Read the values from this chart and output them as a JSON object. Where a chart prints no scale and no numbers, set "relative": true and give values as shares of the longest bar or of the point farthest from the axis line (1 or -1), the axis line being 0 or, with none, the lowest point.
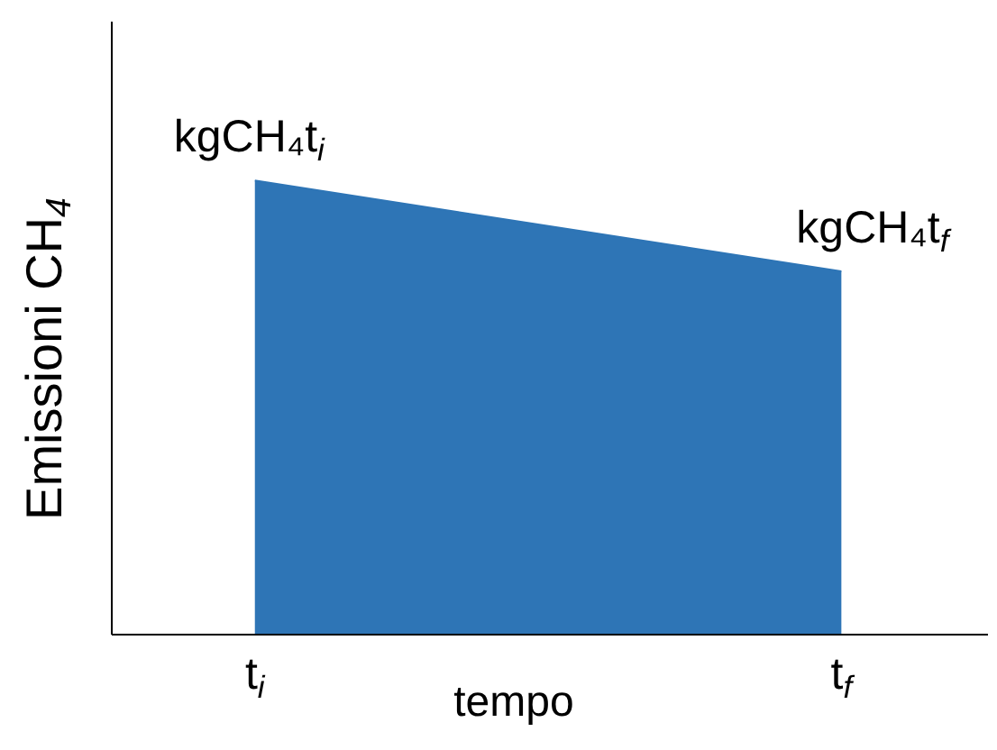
{
  "chart_data": {
    "type": "area",
    "relative": true,
    "xlabel": "tempo",
    "ylabel": "Emissioni CH$_{4}$",
    "categories": [
      "t$_{i}$",
      "t$_{f}$"
    ],
    "series": [
      {
        "color": "#2e75b6",
        "values": [
          1,
          0.8
        ]
      }
    ],
    "annotations": [
      {
        "text": "kgCH₄t$_{i}$",
        "x": "t$_{i}$",
        "y": 1
      },
      {
        "text": "kgCH₄t$_{f}$",
        "x": "t$_{f}$",
        "y": 0.8
      }
    ],
    "grid": false,
    "legend": false
  }
}
